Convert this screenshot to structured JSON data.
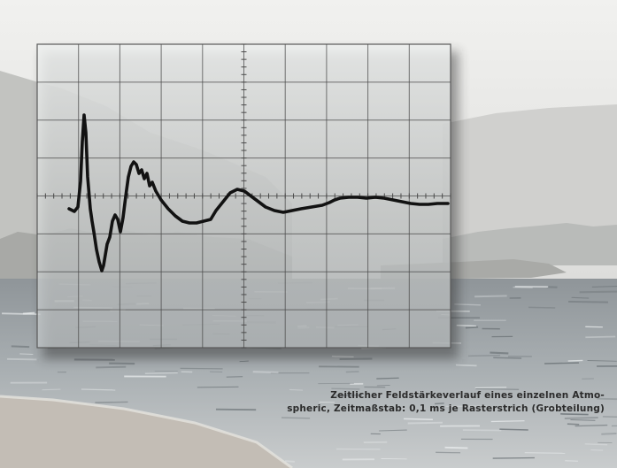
{
  "caption": {
    "line1": "Zeitlicher Feldstärkeverlauf eines einzelnen Atmo-",
    "line2": "spheric, Zeitmaßstab: 0,1 ms je Rasterstrich (Grobteilung)"
  },
  "oscillogram": {
    "grid_columns": 10,
    "grid_rows": 8,
    "trace_color": "#121212",
    "grid_color": "#4a4a4a"
  },
  "colors": {
    "sky": "#e9e9e7",
    "mountains": "#bdbdba",
    "water": "#9ea4a7",
    "shore": "#c4beb6"
  }
}
